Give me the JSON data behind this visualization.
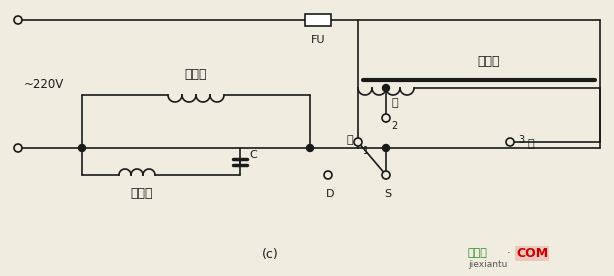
{
  "bg_color": "#f0ece0",
  "lc": "#1a1a1a",
  "label_220v": "~220V",
  "label_main": "主绕组",
  "label_sub": "副绕组",
  "label_FU": "FU",
  "label_reactor": "电抗器",
  "label_C": "C",
  "label_high": "高",
  "label_mid": "中",
  "label_low": "低",
  "label_D": "D",
  "label_S": "S",
  "label_c": "(c)",
  "label_1": "1",
  "label_2": "2",
  "label_3": "3",
  "wm1": "接线图",
  "wm2": "·",
  "wm3": "COM",
  "wm4": "jiexiantu"
}
